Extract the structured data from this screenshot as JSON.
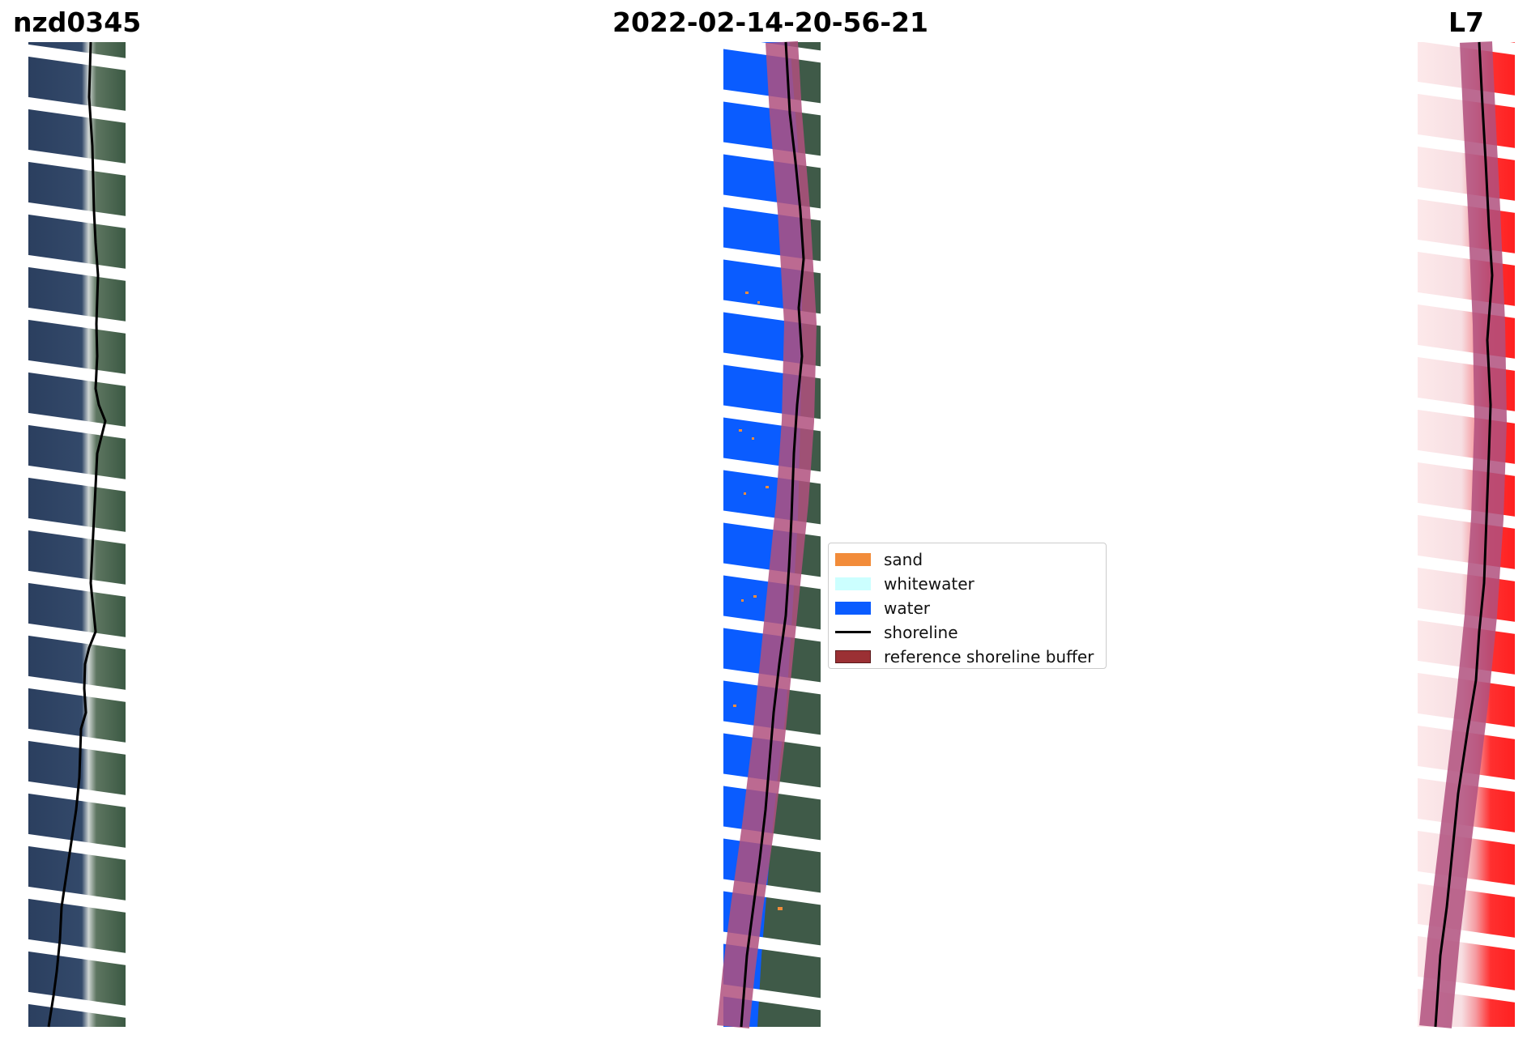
{
  "titles": {
    "left": "nzd0345",
    "center": "2022-02-14-20-56-21",
    "right": "L7"
  },
  "legend": {
    "items": [
      {
        "label": "sand",
        "kind": "patch",
        "color": "#f28c3a"
      },
      {
        "label": "whitewater",
        "kind": "patch",
        "color": "#ccffff"
      },
      {
        "label": "water",
        "kind": "patch",
        "color": "#0a5cff"
      },
      {
        "label": "shoreline",
        "kind": "line",
        "color": "#000000"
      },
      {
        "label": "reference shoreline buffer",
        "kind": "patch",
        "color": "#9b3034"
      }
    ]
  },
  "colors": {
    "water_class": "#0a5cff",
    "sand_class": "#f28c3a",
    "buffer_overlay": "#b0507e",
    "rgb_ocean": "#2a3d5a",
    "rgb_land": "#3a5a44",
    "index_positive": "#ff2a2a",
    "index_light": "#fbe4e6"
  }
}
